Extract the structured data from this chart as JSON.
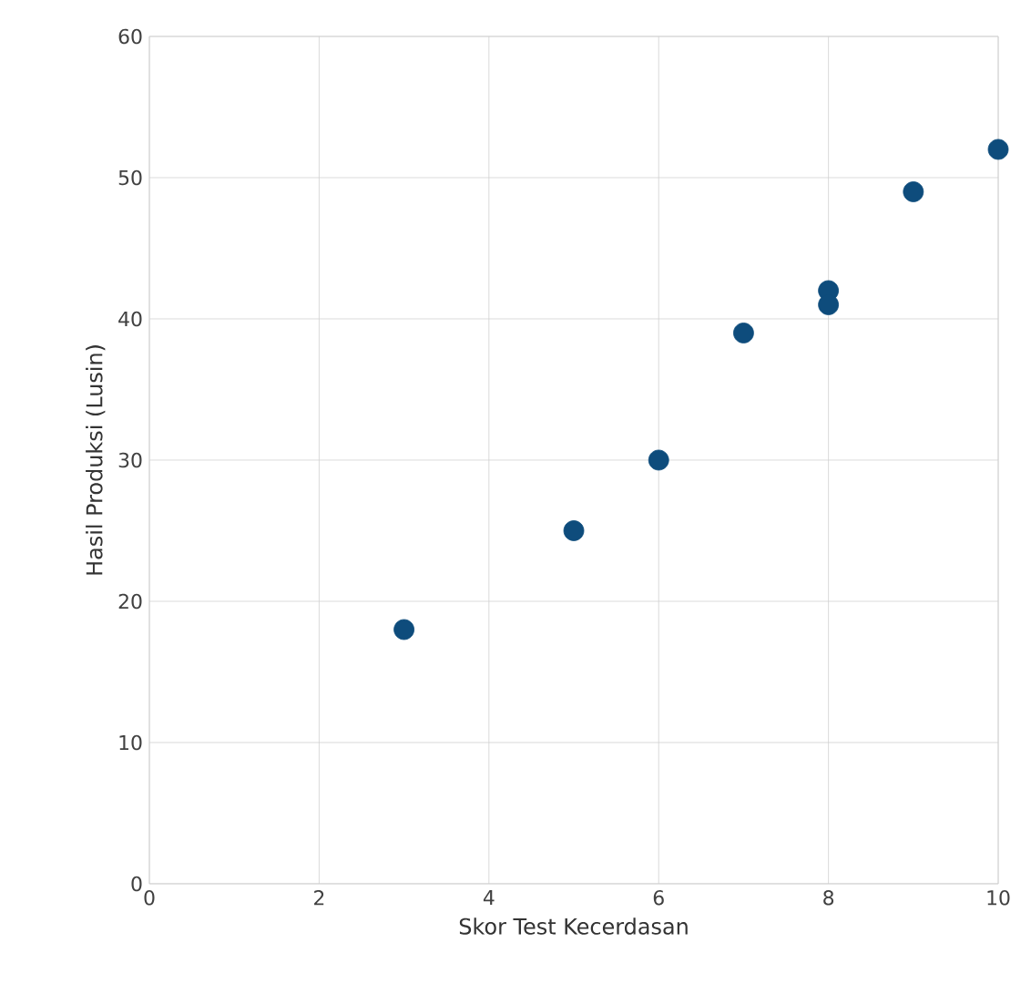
{
  "chart_data": {
    "type": "scatter",
    "xlabel": "Skor Test Kecerdasan",
    "ylabel": "Hasil Produksi (Lusin)",
    "x": [
      3,
      5,
      6,
      7,
      8,
      8,
      9,
      10
    ],
    "values": [
      18,
      25,
      30,
      39,
      42,
      41,
      49,
      52
    ],
    "color": "#0e4c7c",
    "marker": "circle",
    "grid": true,
    "xlim": [
      0,
      10
    ],
    "ylim": [
      0,
      60
    ],
    "xticks": [
      0,
      2,
      4,
      6,
      8,
      10
    ],
    "yticks": [
      0,
      10,
      20,
      30,
      40,
      50,
      60
    ]
  }
}
